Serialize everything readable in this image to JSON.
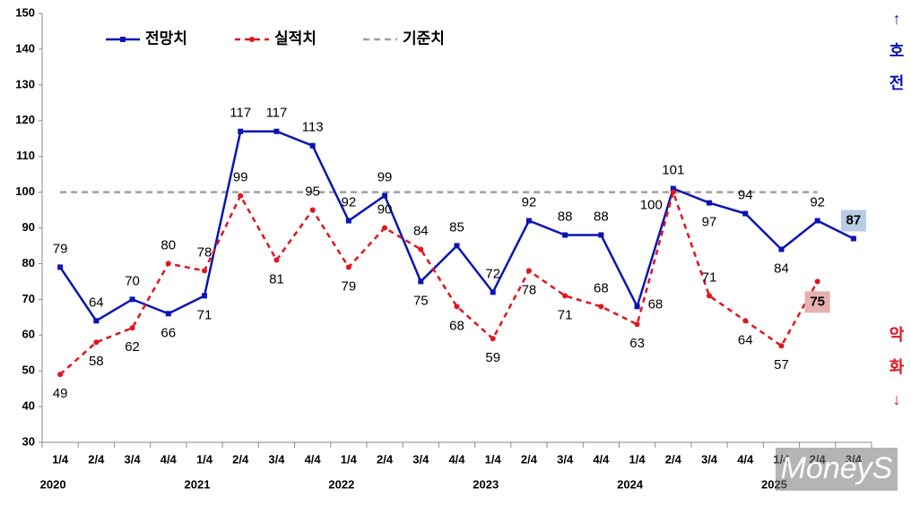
{
  "chart_data": {
    "type": "line",
    "categories": [
      "1/4",
      "2/4",
      "3/4",
      "4/4",
      "1/4",
      "2/4",
      "3/4",
      "4/4",
      "1/4",
      "2/4",
      "3/4",
      "4/4",
      "1/4",
      "2/4",
      "3/4",
      "4/4",
      "1/4",
      "2/4",
      "3/4",
      "4/4",
      "1/4",
      "2/4",
      "3/4"
    ],
    "years": [
      "2020",
      "2021",
      "2022",
      "2023",
      "2024",
      "2025"
    ],
    "series": [
      {
        "name": "전망치",
        "color": "#0a14b4",
        "values": [
          79,
          64,
          70,
          66,
          71,
          117,
          117,
          113,
          92,
          99,
          75,
          85,
          72,
          92,
          88,
          88,
          68,
          101,
          97,
          94,
          84,
          92,
          87
        ]
      },
      {
        "name": "실적치",
        "color": "#e0141e",
        "values": [
          49,
          58,
          62,
          80,
          78,
          99,
          81,
          95,
          79,
          90,
          84,
          68,
          59,
          78,
          71,
          68,
          63,
          100,
          71,
          64,
          57,
          75,
          null
        ]
      }
    ],
    "reference": {
      "name": "기준치",
      "value": 100,
      "color": "#a0a0a0"
    },
    "ylim": [
      30,
      150
    ],
    "yticks": [
      30,
      40,
      50,
      60,
      70,
      80,
      90,
      100,
      110,
      120,
      130,
      140,
      150
    ],
    "up_label": [
      "↑",
      "호",
      "전"
    ],
    "down_label": [
      "악",
      "화",
      "↓"
    ],
    "brand": "MoneyS"
  }
}
